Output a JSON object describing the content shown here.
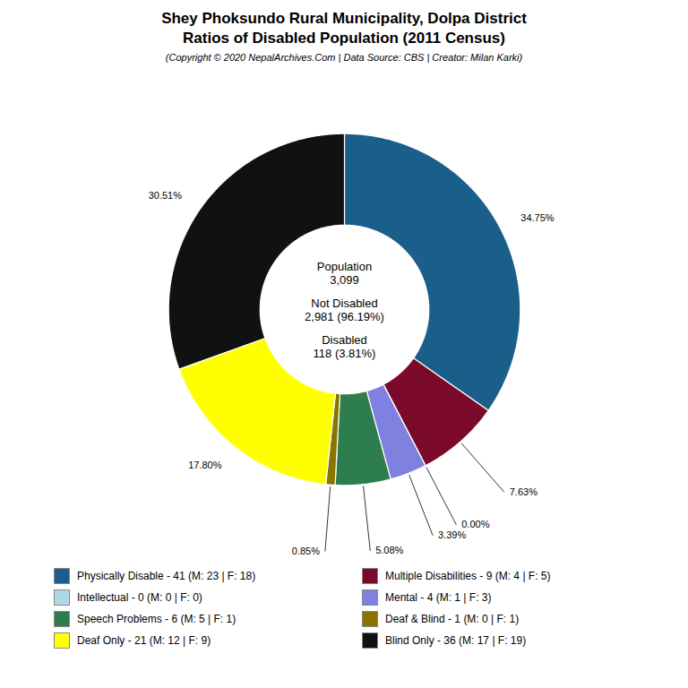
{
  "chart_data": {
    "type": "donut",
    "title": "Shey Phoksundo Rural Municipality, Dolpa District\nRatios of Disabled Population (2011 Census)",
    "subtitle": "(Copyright © 2020 NepalArchives.Com | Data Source: CBS | Creator: Milan Karki)",
    "categories": [
      "Physically Disable - 41 (M: 23 | F: 18)",
      "Multiple Disabilities - 9 (M: 4 | F: 5)",
      "Intellectual - 0 (M: 0 | F: 0)",
      "Mental - 4 (M: 1 | F: 3)",
      "Speech Problems - 6 (M: 5 | F: 1)",
      "Deaf & Blind - 1 (M: 0 | F: 1)",
      "Deaf Only - 21 (M: 12 | F: 9)",
      "Blind Only - 36 (M: 17 | F: 19)"
    ],
    "values": [
      34.75,
      7.63,
      0.0,
      3.39,
      5.08,
      0.85,
      17.8,
      30.51
    ],
    "value_labels": [
      "34.75%",
      "7.63%",
      "0.00%",
      "3.39%",
      "5.08%",
      "0.85%",
      "17.80%",
      "30.51%"
    ],
    "colors": [
      "#1a5f8a",
      "#7b0a2a",
      "#add8e6",
      "#8080e0",
      "#2e7d4f",
      "#8b7300",
      "#ffff00",
      "#111111"
    ],
    "annotations": [
      "Population\n3,099",
      "Not Disabled\n2,981 (96.19%)",
      "Disabled\n118 (3.81%)"
    ],
    "data_labels": true,
    "legend": "bottom"
  }
}
